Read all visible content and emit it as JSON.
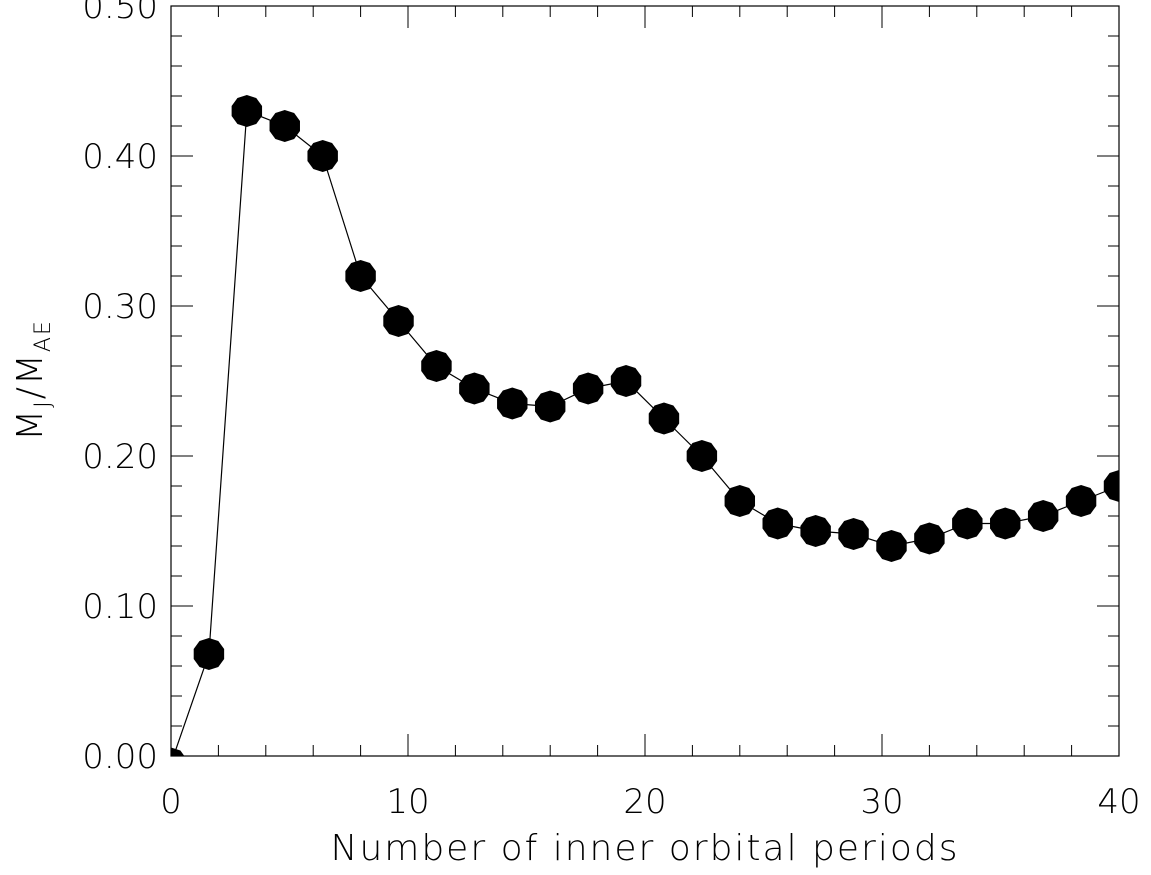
{
  "chart_data": {
    "type": "line",
    "xlabel": "Number of inner orbital periods",
    "ylabel_main": "M",
    "ylabel_sub1": "J",
    "ylabel_slash": "/M",
    "ylabel_sub2": "AE",
    "xlim": [
      0,
      40
    ],
    "ylim": [
      0.0,
      0.5
    ],
    "x_ticks_major": [
      0,
      10,
      20,
      30,
      40
    ],
    "x_tick_labels": [
      "0",
      "10",
      "20",
      "30",
      "40"
    ],
    "y_ticks_major": [
      0.0,
      0.1,
      0.2,
      0.3,
      0.4,
      0.5
    ],
    "y_tick_labels": [
      "0.00",
      "0.10",
      "0.20",
      "0.30",
      "0.40",
      "0.50"
    ],
    "grid": false,
    "marker": "filled-octagon",
    "series": [
      {
        "x": [
          0,
          1.6,
          3.2,
          4.8,
          6.4,
          8.0,
          9.6,
          11.2,
          12.8,
          14.4,
          16.0,
          17.6,
          19.2,
          20.8,
          22.4,
          24.0,
          25.6,
          27.2,
          28.8,
          30.4,
          32.0,
          33.6,
          35.2,
          36.8,
          38.4,
          40.0
        ],
        "y": [
          -0.005,
          0.068,
          0.43,
          0.42,
          0.4,
          0.32,
          0.29,
          0.26,
          0.245,
          0.235,
          0.233,
          0.245,
          0.25,
          0.225,
          0.2,
          0.17,
          0.155,
          0.15,
          0.148,
          0.14,
          0.145,
          0.155,
          0.155,
          0.16,
          0.17,
          0.18
        ]
      }
    ]
  }
}
